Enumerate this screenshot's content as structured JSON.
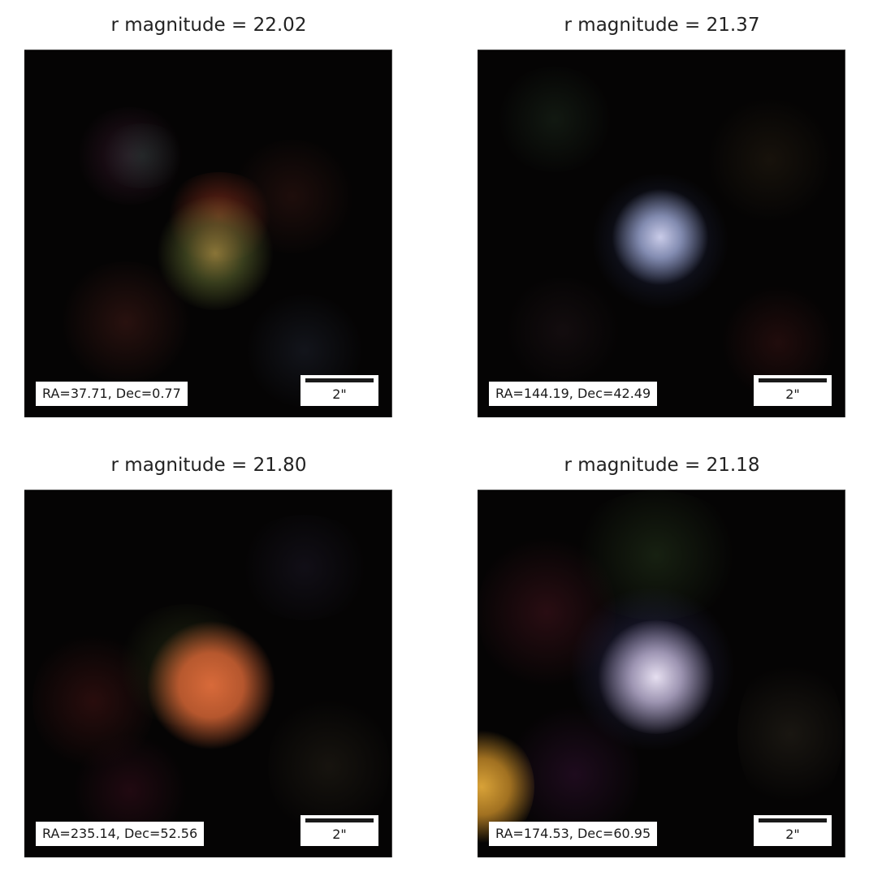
{
  "panels": [
    {
      "title": "r magnitude = 22.02",
      "coords": "RA=37.71, Dec=0.77",
      "scale": "2\""
    },
    {
      "title": "r magnitude = 21.37",
      "coords": "RA=144.19, Dec=42.49",
      "scale": "2\""
    },
    {
      "title": "r magnitude = 21.80",
      "coords": "RA=235.14, Dec=52.56",
      "scale": "2\""
    },
    {
      "title": "r magnitude = 21.18",
      "coords": "RA=174.53, Dec=60.95",
      "scale": "2\""
    }
  ],
  "colors": {
    "background": "#ffffff",
    "sky": "#050404",
    "source_1": "#8f7a3a",
    "source_2": "#c9cbe8",
    "source_3": "#d86a3a",
    "source_4": "#e6dff0",
    "neighbor_4": "#d8a238"
  }
}
